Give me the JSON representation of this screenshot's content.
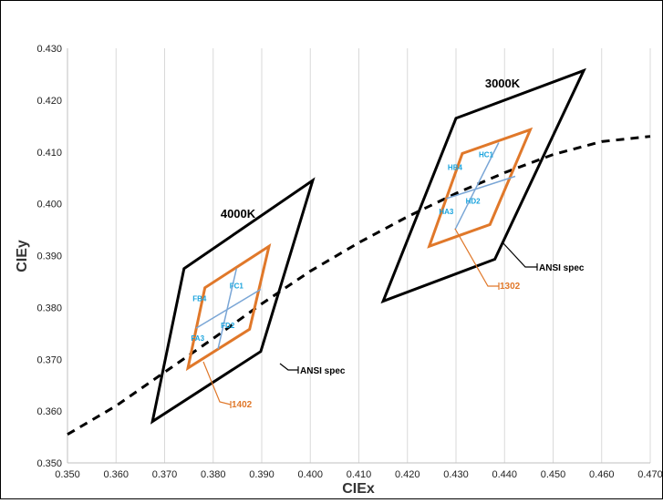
{
  "chart_data": {
    "type": "scatter",
    "xlabel": "CIEx",
    "ylabel": "CIEy",
    "xlim": [
      0.35,
      0.47
    ],
    "ylim": [
      0.35,
      0.43
    ],
    "x_ticks": [
      "0.350",
      "0.360",
      "0.370",
      "0.380",
      "0.390",
      "0.400",
      "0.410",
      "0.420",
      "0.430",
      "0.440",
      "0.450",
      "0.460",
      "0.470"
    ],
    "y_ticks": [
      "0.350",
      "0.360",
      "0.370",
      "0.380",
      "0.390",
      "0.400",
      "0.410",
      "0.420",
      "0.430"
    ],
    "grid": "vertical",
    "colors": {
      "ansi": "#000000",
      "bin": "#e0782a",
      "sub": "#7aa6d6",
      "label": "#1aa3dd"
    },
    "planckian_locus": [
      [
        0.35,
        0.3555
      ],
      [
        0.36,
        0.361
      ],
      [
        0.37,
        0.3675
      ],
      [
        0.38,
        0.374
      ],
      [
        0.39,
        0.3807
      ],
      [
        0.4,
        0.387
      ],
      [
        0.41,
        0.3925
      ],
      [
        0.42,
        0.3975
      ],
      [
        0.43,
        0.402
      ],
      [
        0.44,
        0.406
      ],
      [
        0.45,
        0.4095
      ],
      [
        0.46,
        0.412
      ],
      [
        0.47,
        0.413
      ]
    ],
    "groups": [
      {
        "cct_label": "4000K",
        "ansi_label": "ANSI spec",
        "bin_label": "1402",
        "ansi_quad": [
          [
            0.3675,
            0.358
          ],
          [
            0.374,
            0.3875
          ],
          [
            0.4005,
            0.4045
          ],
          [
            0.3898,
            0.3715
          ]
        ],
        "bin_quad": [
          [
            0.3748,
            0.3683
          ],
          [
            0.3783,
            0.3838
          ],
          [
            0.3915,
            0.3918
          ],
          [
            0.3875,
            0.3758
          ]
        ],
        "sub_lines": [
          [
            [
              0.3765,
              0.376
            ],
            [
              0.3898,
              0.3835
            ]
          ],
          [
            [
              0.381,
              0.372
            ],
            [
              0.3848,
              0.3875
            ]
          ]
        ],
        "sub_labels": [
          {
            "text": "FB4",
            "x": 0.3772,
            "y": 0.3812
          },
          {
            "text": "FC1",
            "x": 0.3848,
            "y": 0.3837
          },
          {
            "text": "FA3",
            "x": 0.3768,
            "y": 0.3736
          },
          {
            "text": "FD2",
            "x": 0.383,
            "y": 0.376
          }
        ]
      },
      {
        "cct_label": "3000K",
        "ansi_label": "ANSI spec",
        "bin_label": "1302",
        "ansi_quad": [
          [
            0.415,
            0.3812
          ],
          [
            0.43,
            0.4165
          ],
          [
            0.4563,
            0.4257
          ],
          [
            0.438,
            0.3893
          ]
        ],
        "bin_quad": [
          [
            0.4245,
            0.3918
          ],
          [
            0.4313,
            0.4097
          ],
          [
            0.4453,
            0.4143
          ],
          [
            0.437,
            0.396
          ]
        ],
        "sub_lines": [
          [
            [
              0.428,
              0.401
            ],
            [
              0.4422,
              0.4053
            ]
          ],
          [
            [
              0.4298,
              0.395
            ],
            [
              0.4388,
              0.4118
            ]
          ]
        ],
        "sub_labels": [
          {
            "text": "HB4",
            "x": 0.4298,
            "y": 0.4065
          },
          {
            "text": "HC1",
            "x": 0.4362,
            "y": 0.409
          },
          {
            "text": "HA3",
            "x": 0.428,
            "y": 0.398
          },
          {
            "text": "HD2",
            "x": 0.4335,
            "y": 0.4
          }
        ]
      }
    ]
  }
}
